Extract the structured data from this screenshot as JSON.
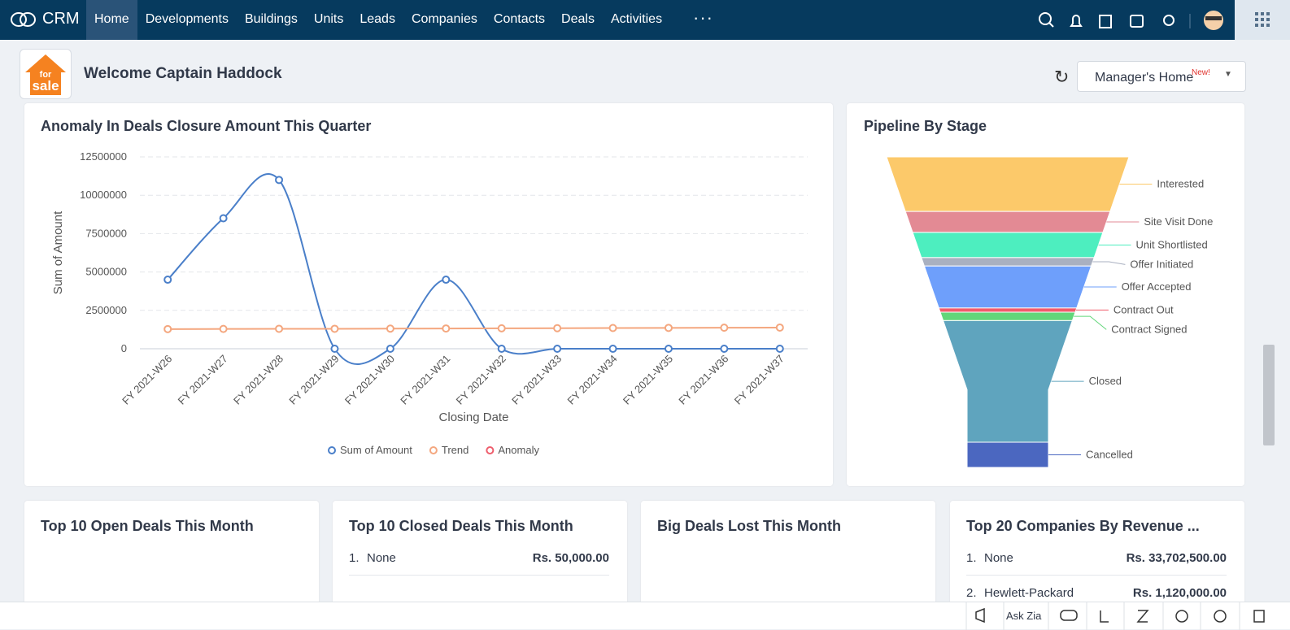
{
  "nav": {
    "brand": "CRM",
    "items": [
      "Home",
      "Developments",
      "Buildings",
      "Units",
      "Leads",
      "Companies",
      "Contacts",
      "Deals",
      "Activities"
    ]
  },
  "header": {
    "logo": [
      "for",
      "sale"
    ],
    "welcome": "Welcome Captain Haddock",
    "dashboard": "Manager's Home",
    "badge": "New!"
  },
  "chart_data": [
    {
      "type": "line",
      "title": "Anomaly In Deals Closure Amount This Quarter",
      "x_label": "Closing Date",
      "y_label": "Sum of Amount",
      "categories": [
        "FY 2021-W26",
        "FY 2021-W27",
        "FY 2021-W28",
        "FY 2021-W29",
        "FY 2021-W30",
        "FY 2021-W31",
        "FY 2021-W32",
        "FY 2021-W33",
        "FY 2021-W34",
        "FY 2021-W35",
        "FY 2021-W36",
        "FY 2021-W37"
      ],
      "series": [
        {
          "name": "Sum of Amount",
          "color": "#4a7fc9",
          "values": [
            4500000,
            8500000,
            11000000,
            0,
            0,
            4500000,
            0,
            0,
            0,
            0,
            0,
            0
          ]
        },
        {
          "name": "Trend",
          "color": "#f4a77f",
          "values": [
            1280000,
            1290000,
            1300000,
            1300000,
            1310000,
            1320000,
            1330000,
            1340000,
            1350000,
            1360000,
            1370000,
            1380000
          ]
        },
        {
          "name": "Anomaly",
          "color": "#ee5d6c",
          "values": [
            null,
            null,
            null,
            null,
            null,
            null,
            null,
            null,
            null,
            null,
            null,
            null
          ]
        }
      ],
      "ylim": [
        0,
        12500000
      ],
      "yticks": [
        0,
        2500000,
        5000000,
        7500000,
        10000000,
        12500000
      ],
      "grid": true
    },
    {
      "type": "funnel",
      "title": "Pipeline By Stage",
      "categories": [
        "Interested",
        "Site Visit Done",
        "Unit Shortlisted",
        "Offer Initiated",
        "Offer Accepted",
        "Contract Out",
        "Contract Signed",
        "Closed",
        "Cancelled"
      ],
      "values": [
        13,
        5,
        6,
        2,
        10,
        1,
        2,
        29,
        6
      ],
      "colors": [
        "#fcc96a",
        "#e38a94",
        "#4deebf",
        "#a9b0c0",
        "#6e9ffb",
        "#f15b6c",
        "#62d67a",
        "#5fa4be",
        "#4b67c0"
      ]
    }
  ],
  "cards": [
    {
      "title": "Top 10 Open Deals This Month"
    },
    {
      "title": "Top 10 Closed Deals This Month",
      "rows": [
        [
          "1.",
          "None",
          "Rs. 50,000.00"
        ]
      ]
    },
    {
      "title": "Big Deals Lost This Month"
    },
    {
      "title": "Top 20 Companies By Revenue ...",
      "rows": [
        [
          "1.",
          "None",
          "Rs. 33,702,500.00"
        ],
        [
          "2.",
          "Hewlett-Packard",
          "Rs. 1,120,000.00"
        ]
      ]
    }
  ],
  "footer": {
    "ask": "Ask Zia"
  }
}
